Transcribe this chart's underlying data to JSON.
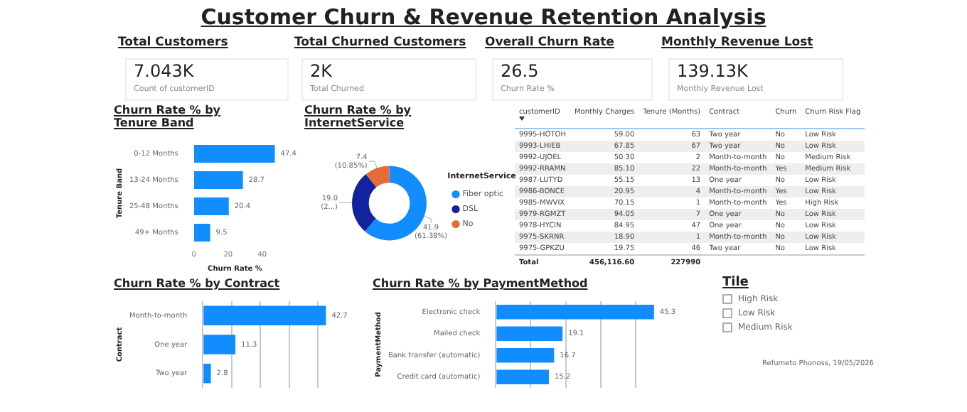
{
  "chart_data": [
    {
      "type": "other",
      "title": "Customer Churn & Revenue Retention Analysis"
    },
    {
      "type": "other",
      "title": "Total Customers",
      "annotations": [
        "7.043K",
        "Count of customerID"
      ]
    },
    {
      "type": "other",
      "title": "Total Churned Customers",
      "annotations": [
        "2K",
        "Total Churned"
      ]
    },
    {
      "type": "other",
      "title": "Overall Churn Rate",
      "annotations": [
        "26.5",
        "Churn Rate %"
      ]
    },
    {
      "type": "other",
      "title": "Monthly Revenue Lost",
      "annotations": [
        "139.13K",
        "Monthly Revenue Lost"
      ]
    },
    {
      "type": "bar",
      "orientation": "horizontal",
      "title": "Churn Rate % by Tenure Band",
      "xlabel": "Churn Rate %",
      "ylabel": "Tenure Band",
      "categories": [
        "0-12 Months",
        "13-24 Months",
        "25-48 Months",
        "49+ Months"
      ],
      "values": [
        47.4,
        28.7,
        20.4,
        9.5
      ],
      "color": "#118dff",
      "xlim": [
        0,
        48
      ],
      "xticks": [
        0,
        20,
        40
      ],
      "data_labels": true
    },
    {
      "type": "donut",
      "title": "Churn Rate % by InternetService",
      "legend_title": "InternetService",
      "legend": "right",
      "categories": [
        "Fiber optic",
        "DSL",
        "No"
      ],
      "values": [
        41.9,
        19.0,
        7.4
      ],
      "colors": [
        "#118dff",
        "#12239e",
        "#e66c37"
      ],
      "value_labels": [
        "41.9\n(61.38%)",
        "19.0\n(2...)",
        "7.4\n(10.85%)"
      ]
    },
    {
      "type": "other",
      "categories": [
        "customerID",
        "Monthly Charges",
        "Tenure (Months)",
        "Contract",
        "Churn",
        "Churn Risk Flag"
      ],
      "annotations": [
        "9995-HOTOH",
        "59.00",
        "63",
        "Two year",
        "No",
        "Low Risk",
        "9993-LHIEB",
        "67.85",
        "67",
        "Two year",
        "No",
        "Low Risk",
        "9992-UJOEL",
        "50.30",
        "2",
        "Month-to-month",
        "No",
        "Medium Risk",
        "9992-RRAMN",
        "85.10",
        "22",
        "Month-to-month",
        "Yes",
        "Medium Risk",
        "9987-LUTYD",
        "55.15",
        "13",
        "One year",
        "No",
        "Low Risk",
        "9986-BONCE",
        "20.95",
        "4",
        "Month-to-month",
        "Yes",
        "Low Risk",
        "9985-MWVIX",
        "70.15",
        "1",
        "Month-to-month",
        "Yes",
        "High Risk",
        "9979-RGMZT",
        "94.05",
        "7",
        "One year",
        "No",
        "Low Risk",
        "9978-HYCIN",
        "84.95",
        "47",
        "One year",
        "No",
        "Low Risk",
        "9975-SKRNR",
        "18.90",
        "1",
        "Month-to-month",
        "No",
        "Low Risk",
        "9975-GPKZU",
        "19.75",
        "46",
        "Two year",
        "No",
        "Low Risk",
        "Total",
        "456,116.60",
        "227990"
      ]
    },
    {
      "type": "bar",
      "orientation": "horizontal",
      "title": "Churn Rate % by Contract",
      "ylabel": "Contract",
      "categories": [
        "Month-to-month",
        "One year",
        "Two year"
      ],
      "values": [
        42.7,
        11.3,
        2.8
      ],
      "color": "#118dff",
      "xticks": [
        {
          "value": 0,
          "label": null
        },
        {
          "value": 10,
          "label": null
        },
        {
          "value": 20,
          "label": null
        },
        {
          "value": 30,
          "label": null
        },
        {
          "value": 40,
          "label": null
        }
      ],
      "grid": "x",
      "tick_labels": "y",
      "data_labels": true
    },
    {
      "type": "bar",
      "orientation": "horizontal",
      "title": "Churn Rate % by PaymentMethod",
      "ylabel": "PaymentMethod",
      "categories": [
        "Electronic check",
        "Mailed check",
        "Bank transfer (automatic)",
        "Credit card (automatic)"
      ],
      "values": [
        45.3,
        19.1,
        16.7,
        15.2
      ],
      "color": "#118dff",
      "xticks": [
        {
          "value": 0,
          "label": null
        },
        {
          "value": 10,
          "label": null
        },
        {
          "value": 20,
          "label": null
        },
        {
          "value": 30,
          "label": null
        },
        {
          "value": 40,
          "label": null
        }
      ],
      "grid": "x",
      "tick_labels": "y",
      "data_labels": true
    },
    {
      "type": "other",
      "title": "Tile",
      "categories": [
        "High Risk",
        "Low Risk",
        "Medium Risk"
      ],
      "annotations": [
        "Refumeto Phonoss, 19/05/2026"
      ]
    }
  ]
}
